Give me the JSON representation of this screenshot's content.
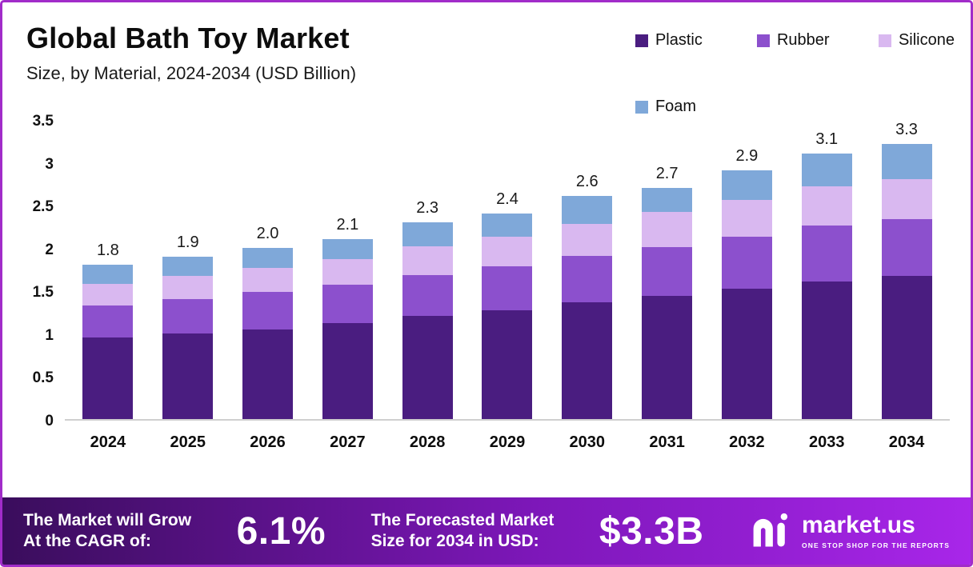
{
  "header": {
    "title": "Global Bath Toy Market",
    "subtitle": "Size, by Material, 2024-2034 (USD Billion)"
  },
  "chart_data": {
    "type": "bar",
    "stacked": true,
    "title": "Global Bath Toy Market Size, by Material, 2024-2034 (USD Billion)",
    "xlabel": "",
    "ylabel": "",
    "ylim": [
      0,
      3.5
    ],
    "grid": false,
    "legend_position": "top-right",
    "categories": [
      "2024",
      "2025",
      "2026",
      "2027",
      "2028",
      "2029",
      "2030",
      "2031",
      "2032",
      "2033",
      "2034"
    ],
    "series": [
      {
        "name": "Plastic",
        "color": "#4a1d80",
        "values": [
          0.95,
          1.0,
          1.05,
          1.12,
          1.2,
          1.27,
          1.36,
          1.44,
          1.52,
          1.61,
          1.72
        ]
      },
      {
        "name": "Rubber",
        "color": "#8c50cd",
        "values": [
          0.38,
          0.4,
          0.43,
          0.45,
          0.48,
          0.51,
          0.54,
          0.57,
          0.61,
          0.65,
          0.68
        ]
      },
      {
        "name": "Silicone",
        "color": "#d9b8f0",
        "values": [
          0.25,
          0.27,
          0.28,
          0.3,
          0.34,
          0.35,
          0.38,
          0.41,
          0.43,
          0.46,
          0.48
        ]
      },
      {
        "name": "Foam",
        "color": "#7fa8d9",
        "values": [
          0.22,
          0.23,
          0.24,
          0.23,
          0.28,
          0.27,
          0.32,
          0.28,
          0.34,
          0.38,
          0.42
        ]
      }
    ],
    "totals": [
      "1.8",
      "1.9",
      "2.0",
      "2.1",
      "2.3",
      "2.4",
      "2.6",
      "2.7",
      "2.9",
      "3.1",
      "3.3"
    ],
    "yticks": [
      "0",
      "0.5",
      "1",
      "1.5",
      "2",
      "2.5",
      "3",
      "3.5"
    ]
  },
  "banner": {
    "cagr_label": "The Market will Grow\nAt the CAGR of:",
    "cagr_value": "6.1%",
    "forecast_label": "The Forecasted Market\nSize for 2034 in USD:",
    "forecast_value": "$3.3B",
    "logo_text": "market.us",
    "logo_tagline": "ONE STOP SHOP FOR THE REPORTS"
  }
}
